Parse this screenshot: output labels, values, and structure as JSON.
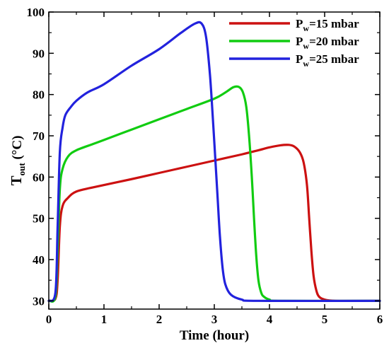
{
  "chart_data": {
    "type": "line",
    "xlabel": "Time (hour)",
    "ylabel": {
      "main": "T",
      "sub": "out",
      "unit": " (°C)"
    },
    "xlim": [
      0,
      6
    ],
    "ylim": [
      28,
      100
    ],
    "xticks": [
      0,
      1,
      2,
      3,
      4,
      5,
      6
    ],
    "yticks": [
      30,
      40,
      50,
      60,
      70,
      80,
      90,
      100
    ],
    "grid": false,
    "legend_position": "top-right",
    "series": [
      {
        "name": "P_w=15 mbar",
        "legend": {
          "main": "P",
          "sub": "w",
          "rest": "=15 mbar"
        },
        "color": "#cc1111",
        "x": [
          0,
          0.12,
          0.16,
          0.2,
          0.25,
          0.35,
          0.5,
          0.8,
          1.5,
          2.0,
          2.5,
          3.0,
          3.5,
          3.8,
          4.0,
          4.2,
          4.35,
          4.45,
          4.55,
          4.62,
          4.68,
          4.72,
          4.76,
          4.8,
          4.85,
          4.9,
          5.0,
          5.2,
          6.0
        ],
        "y": [
          30,
          30.5,
          35,
          48,
          53,
          55,
          56.5,
          57.5,
          59.5,
          61,
          62.5,
          64,
          65.5,
          66.5,
          67.2,
          67.7,
          67.8,
          67.4,
          66,
          63.5,
          58,
          50,
          42,
          36,
          32.5,
          31,
          30.3,
          30,
          30
        ]
      },
      {
        "name": "P_w=20 mbar",
        "legend": {
          "main": "P",
          "sub": "w",
          "rest": "=20 mbar"
        },
        "color": "#11cc11",
        "x": [
          0,
          0.12,
          0.16,
          0.2,
          0.25,
          0.35,
          0.5,
          0.8,
          1.0,
          1.5,
          2.0,
          2.5,
          3.0,
          3.2,
          3.35,
          3.45,
          3.52,
          3.58,
          3.63,
          3.68,
          3.72,
          3.76,
          3.8,
          3.85,
          3.9,
          4.0,
          4.2,
          6.0
        ],
        "y": [
          30,
          31,
          42,
          57,
          62,
          65,
          66.5,
          68,
          69,
          71.5,
          74,
          76.5,
          79,
          80.5,
          81.8,
          81.8,
          80.5,
          77,
          70,
          60,
          50,
          41,
          35,
          32,
          31,
          30.3,
          30,
          30
        ]
      },
      {
        "name": "P_w=25 mbar",
        "legend": {
          "main": "P",
          "sub": "w",
          "rest": "=25 mbar"
        },
        "color": "#2222dd",
        "x": [
          0,
          0.12,
          0.16,
          0.2,
          0.25,
          0.3,
          0.4,
          0.5,
          0.7,
          1.0,
          1.5,
          2.0,
          2.4,
          2.65,
          2.77,
          2.85,
          2.92,
          2.97,
          3.02,
          3.06,
          3.1,
          3.15,
          3.2,
          3.3,
          3.5,
          3.8,
          6.0
        ],
        "y": [
          30,
          32,
          48,
          66,
          72,
          75,
          77,
          78.5,
          80.5,
          82.5,
          87,
          91,
          95,
          97.2,
          97.2,
          94,
          85,
          75,
          64,
          55,
          46,
          38,
          34,
          31.5,
          30.3,
          30,
          30
        ]
      }
    ]
  }
}
